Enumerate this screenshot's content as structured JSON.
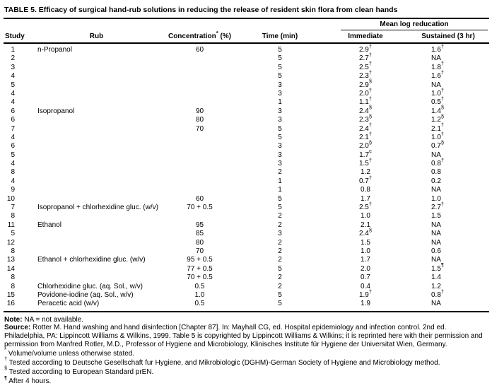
{
  "title": "TABLE 5. Efficacy of surgical hand-rub solutions in reducing the release of resident skin flora from clean hands",
  "table": {
    "span_header": "Mean log reducation",
    "columns": {
      "study": "Study",
      "rub": "Rub",
      "concentration_label": "Concentration",
      "concentration_sup": "*",
      "concentration_unit": " (%)",
      "time": "Time (min)",
      "immediate": "Immediate",
      "sustained": "Sustained (3 hr)"
    },
    "rows": [
      {
        "study": "1",
        "rub": "n-Propanol",
        "concentration": "60",
        "time": "5",
        "immediate": "2.9",
        "immediate_sup": "†",
        "sustained": "1.6",
        "sustained_sup": "†"
      },
      {
        "study": "2",
        "rub": "",
        "concentration": "",
        "time": "5",
        "immediate": "2.7",
        "immediate_sup": "†",
        "sustained": "NA",
        "sustained_sup": ""
      },
      {
        "study": "3",
        "rub": "",
        "concentration": "",
        "time": "5",
        "immediate": "2.5",
        "immediate_sup": "†",
        "sustained": "1.8",
        "sustained_sup": "†"
      },
      {
        "study": "4",
        "rub": "",
        "concentration": "",
        "time": "5",
        "immediate": "2.3",
        "immediate_sup": "†",
        "sustained": "1.6",
        "sustained_sup": "†"
      },
      {
        "study": "5",
        "rub": "",
        "concentration": "",
        "time": "3",
        "immediate": "2.9",
        "immediate_sup": "§",
        "sustained": "NA",
        "sustained_sup": ""
      },
      {
        "study": "4",
        "rub": "",
        "concentration": "",
        "time": "3",
        "immediate": "2.0",
        "immediate_sup": "†",
        "sustained": "1.0",
        "sustained_sup": "†"
      },
      {
        "study": "4",
        "rub": "",
        "concentration": "",
        "time": "1",
        "immediate": "1.1",
        "immediate_sup": "†",
        "sustained": "0.5",
        "sustained_sup": "†"
      },
      {
        "study": "6",
        "rub": "Isopropanol",
        "concentration": "90",
        "time": "3",
        "immediate": "2.4",
        "immediate_sup": "§",
        "sustained": "1.4",
        "sustained_sup": "§"
      },
      {
        "study": "6",
        "rub": "",
        "concentration": "80",
        "time": "3",
        "immediate": "2.3",
        "immediate_sup": "§",
        "sustained": "1.2",
        "sustained_sup": "§"
      },
      {
        "study": "7",
        "rub": "",
        "concentration": "70",
        "time": "5",
        "immediate": "2.4",
        "immediate_sup": "†",
        "sustained": "2.1",
        "sustained_sup": "†"
      },
      {
        "study": "4",
        "rub": "",
        "concentration": "",
        "time": "5",
        "immediate": "2.1",
        "immediate_sup": "†",
        "sustained": "1.0",
        "sustained_sup": "†"
      },
      {
        "study": "6",
        "rub": "",
        "concentration": "",
        "time": "3",
        "immediate": "2.0",
        "immediate_sup": "§",
        "sustained": "0.7",
        "sustained_sup": "§"
      },
      {
        "study": "5",
        "rub": "",
        "concentration": "",
        "time": "3",
        "immediate": "1.7",
        "immediate_sup": "c",
        "sustained": "NA",
        "sustained_sup": ""
      },
      {
        "study": "4",
        "rub": "",
        "concentration": "",
        "time": "3",
        "immediate": "1.5",
        "immediate_sup": "†",
        "sustained": "0.8",
        "sustained_sup": "†"
      },
      {
        "study": "8",
        "rub": "",
        "concentration": "",
        "time": "2",
        "immediate": "1.2",
        "immediate_sup": "",
        "sustained": "0.8",
        "sustained_sup": ""
      },
      {
        "study": "4",
        "rub": "",
        "concentration": "",
        "time": "1",
        "immediate": "0.7",
        "immediate_sup": "†",
        "sustained": "0.2",
        "sustained_sup": ""
      },
      {
        "study": "9",
        "rub": "",
        "concentration": "",
        "time": "1",
        "immediate": "0.8",
        "immediate_sup": "",
        "sustained": "NA",
        "sustained_sup": ""
      },
      {
        "study": "10",
        "rub": "",
        "concentration": "60",
        "time": "5",
        "immediate": "1.7",
        "immediate_sup": "",
        "sustained": "1.0",
        "sustained_sup": ""
      },
      {
        "study": "7",
        "rub": "Isopropanol + chlorhexidine gluc. (w/v)",
        "concentration": "70 + 0.5",
        "time": "5",
        "immediate": "2.5",
        "immediate_sup": "†",
        "sustained": "2.7",
        "sustained_sup": "†"
      },
      {
        "study": "8",
        "rub": "",
        "concentration": "",
        "time": "2",
        "immediate": "1.0",
        "immediate_sup": "",
        "sustained": "1.5",
        "sustained_sup": ""
      },
      {
        "study": "11",
        "rub": "Ethanol",
        "concentration": "95",
        "time": "2",
        "immediate": "2.1",
        "immediate_sup": "",
        "sustained": "NA",
        "sustained_sup": ""
      },
      {
        "study": "5",
        "rub": "",
        "concentration": "85",
        "time": "3",
        "immediate": "2.4",
        "immediate_sup": "§",
        "sustained": "NA",
        "sustained_sup": ""
      },
      {
        "study": "12",
        "rub": "",
        "concentration": "80",
        "time": "2",
        "immediate": "1.5",
        "immediate_sup": "",
        "sustained": "NA",
        "sustained_sup": ""
      },
      {
        "study": "8",
        "rub": "",
        "concentration": "70",
        "time": "2",
        "immediate": "1.0",
        "immediate_sup": "",
        "sustained": "0.6",
        "sustained_sup": ""
      },
      {
        "study": "13",
        "rub": "Ethanol + chlorhexidine gluc. (w/v)",
        "concentration": "95 + 0.5",
        "time": "2",
        "immediate": "1.7",
        "immediate_sup": "",
        "sustained": "NA",
        "sustained_sup": ""
      },
      {
        "study": "14",
        "rub": "",
        "concentration": "77 + 0.5",
        "time": "5",
        "immediate": "2.0",
        "immediate_sup": "",
        "sustained": "1.5",
        "sustained_sup": "¶"
      },
      {
        "study": "8",
        "rub": "",
        "concentration": "70 + 0.5",
        "time": "2",
        "immediate": "0.7",
        "immediate_sup": "",
        "sustained": "1.4",
        "sustained_sup": ""
      },
      {
        "study": "8",
        "rub": "Chlorhexidine gluc. (aq. Sol., w/v)",
        "concentration": "0.5",
        "time": "2",
        "immediate": "0.4",
        "immediate_sup": "",
        "sustained": "1.2",
        "sustained_sup": ""
      },
      {
        "study": "15",
        "rub": "Povidone-iodine (aq. Sol., w/v)",
        "concentration": "1.0",
        "time": "5",
        "immediate": "1.9",
        "immediate_sup": "†",
        "sustained": "0.8",
        "sustained_sup": "†"
      },
      {
        "study": "16",
        "rub": "Peracetic acid (w/v)",
        "concentration": "0.5",
        "time": "5",
        "immediate": "1.9",
        "immediate_sup": "",
        "sustained": "NA",
        "sustained_sup": ""
      }
    ]
  },
  "notes": {
    "note_label": "Note:",
    "note_text": " NA = not available.",
    "source_label": "Source:",
    "source_text": " Rotter M. Hand washing and hand disinfection [Chapter 87]. In: Mayhall CG, ed. Hospital epidemiology and infection control. 2nd ed. Philadelphia, PA: Lippincott Williams & Wilkins, 1999. Table 5 is copyrighted by Lippincott Williams & Wilkins; it is reprinted here with their permission and permission from Manfred Rotler, M.D., Professor of Hygiene and Microbiology, Klinisches Institute für Hygiene der Universitat Wien, Germany."
  },
  "footnotes": [
    {
      "sym": "*",
      "text": " Volume/volume unless otherwise stated."
    },
    {
      "sym": "†",
      "text": " Tested according to Deutsche Gesellschaft fur Hygiene, and Mikrobiologic (DGHM)-German Society of Hygiene and Microbiology method."
    },
    {
      "sym": "§",
      "text": " Tested according to European Standard prEN."
    },
    {
      "sym": "¶",
      "text": " After 4 hours."
    }
  ]
}
